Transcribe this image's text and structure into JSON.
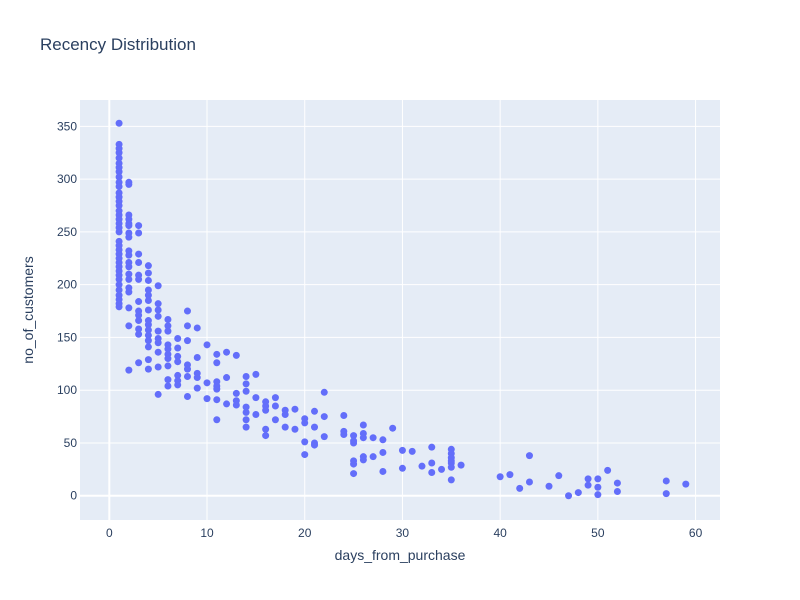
{
  "chart_data": {
    "type": "scatter",
    "title": "Recency Distribution",
    "xlabel": "days_from_purchase",
    "ylabel": "no_of_customers",
    "xlim": [
      -3,
      62.5
    ],
    "ylim": [
      -23,
      375
    ],
    "xticks": [
      0,
      10,
      20,
      30,
      40,
      50,
      60
    ],
    "yticks": [
      0,
      50,
      100,
      150,
      200,
      250,
      300,
      350
    ],
    "grid": true,
    "legend": "none",
    "colors": {
      "marker": "#636efa",
      "plot_bg": "#e5ecf6",
      "text": "#2a3f5f",
      "grid": "#ffffff"
    },
    "points": [
      [
        1,
        353
      ],
      [
        1,
        333
      ],
      [
        1,
        329
      ],
      [
        1,
        325
      ],
      [
        1,
        320
      ],
      [
        1,
        315
      ],
      [
        1,
        311
      ],
      [
        1,
        307
      ],
      [
        1,
        302
      ],
      [
        1,
        297
      ],
      [
        1,
        293
      ],
      [
        1,
        287
      ],
      [
        1,
        283
      ],
      [
        1,
        279
      ],
      [
        1,
        275
      ],
      [
        1,
        270
      ],
      [
        1,
        266
      ],
      [
        1,
        262
      ],
      [
        1,
        258
      ],
      [
        1,
        254
      ],
      [
        1,
        250
      ],
      [
        1,
        241
      ],
      [
        1,
        237
      ],
      [
        1,
        233
      ],
      [
        1,
        229
      ],
      [
        1,
        225
      ],
      [
        1,
        221
      ],
      [
        1,
        217
      ],
      [
        1,
        213
      ],
      [
        1,
        209
      ],
      [
        1,
        205
      ],
      [
        1,
        200
      ],
      [
        1,
        195
      ],
      [
        1,
        190
      ],
      [
        1,
        186
      ],
      [
        1,
        182
      ],
      [
        1,
        179
      ],
      [
        2,
        297
      ],
      [
        2,
        295
      ],
      [
        2,
        266
      ],
      [
        2,
        262
      ],
      [
        2,
        258
      ],
      [
        2,
        256
      ],
      [
        2,
        249
      ],
      [
        2,
        245
      ],
      [
        2,
        232
      ],
      [
        2,
        228
      ],
      [
        2,
        221
      ],
      [
        2,
        217
      ],
      [
        2,
        210
      ],
      [
        2,
        205
      ],
      [
        2,
        197
      ],
      [
        2,
        193
      ],
      [
        2,
        178
      ],
      [
        2,
        161
      ],
      [
        2,
        119
      ],
      [
        3,
        256
      ],
      [
        3,
        249
      ],
      [
        3,
        229
      ],
      [
        3,
        221
      ],
      [
        3,
        209
      ],
      [
        3,
        205
      ],
      [
        3,
        184
      ],
      [
        3,
        175
      ],
      [
        3,
        171
      ],
      [
        3,
        166
      ],
      [
        3,
        158
      ],
      [
        3,
        153
      ],
      [
        3,
        126
      ],
      [
        4,
        218
      ],
      [
        4,
        211
      ],
      [
        4,
        204
      ],
      [
        4,
        195
      ],
      [
        4,
        190
      ],
      [
        4,
        185
      ],
      [
        4,
        176
      ],
      [
        4,
        166
      ],
      [
        4,
        162
      ],
      [
        4,
        157
      ],
      [
        4,
        152
      ],
      [
        4,
        147
      ],
      [
        4,
        141
      ],
      [
        4,
        129
      ],
      [
        4,
        120
      ],
      [
        5,
        199
      ],
      [
        5,
        182
      ],
      [
        5,
        176
      ],
      [
        5,
        170
      ],
      [
        5,
        156
      ],
      [
        5,
        149
      ],
      [
        5,
        145
      ],
      [
        5,
        136
      ],
      [
        5,
        122
      ],
      [
        5,
        96
      ],
      [
        6,
        167
      ],
      [
        6,
        161
      ],
      [
        6,
        156
      ],
      [
        6,
        143
      ],
      [
        6,
        139
      ],
      [
        6,
        134
      ],
      [
        6,
        130
      ],
      [
        6,
        123
      ],
      [
        6,
        110
      ],
      [
        6,
        104
      ],
      [
        7,
        149
      ],
      [
        7,
        140
      ],
      [
        7,
        132
      ],
      [
        7,
        127
      ],
      [
        7,
        114
      ],
      [
        7,
        109
      ],
      [
        7,
        105
      ],
      [
        8,
        175
      ],
      [
        8,
        161
      ],
      [
        8,
        147
      ],
      [
        8,
        124
      ],
      [
        8,
        120
      ],
      [
        8,
        113
      ],
      [
        8,
        94
      ],
      [
        9,
        159
      ],
      [
        9,
        131
      ],
      [
        9,
        116
      ],
      [
        9,
        112
      ],
      [
        9,
        102
      ],
      [
        10,
        143
      ],
      [
        10,
        107
      ],
      [
        10,
        92
      ],
      [
        11,
        134
      ],
      [
        11,
        126
      ],
      [
        11,
        108
      ],
      [
        11,
        104
      ],
      [
        11,
        101
      ],
      [
        11,
        91
      ],
      [
        11,
        72
      ],
      [
        12,
        136
      ],
      [
        12,
        112
      ],
      [
        12,
        87
      ],
      [
        13,
        133
      ],
      [
        13,
        97
      ],
      [
        13,
        90
      ],
      [
        13,
        86
      ],
      [
        14,
        113
      ],
      [
        14,
        106
      ],
      [
        14,
        99
      ],
      [
        14,
        84
      ],
      [
        14,
        79
      ],
      [
        14,
        72
      ],
      [
        14,
        65
      ],
      [
        15,
        115
      ],
      [
        15,
        93
      ],
      [
        15,
        77
      ],
      [
        16,
        89
      ],
      [
        16,
        85
      ],
      [
        16,
        81
      ],
      [
        16,
        63
      ],
      [
        16,
        57
      ],
      [
        17,
        93
      ],
      [
        17,
        85
      ],
      [
        17,
        72
      ],
      [
        18,
        81
      ],
      [
        18,
        77
      ],
      [
        18,
        65
      ],
      [
        19,
        82
      ],
      [
        19,
        63
      ],
      [
        20,
        73
      ],
      [
        20,
        69
      ],
      [
        20,
        51
      ],
      [
        20,
        39
      ],
      [
        21,
        80
      ],
      [
        21,
        65
      ],
      [
        21,
        50
      ],
      [
        21,
        48
      ],
      [
        22,
        98
      ],
      [
        22,
        75
      ],
      [
        22,
        56
      ],
      [
        24,
        76
      ],
      [
        24,
        61
      ],
      [
        24,
        58
      ],
      [
        25,
        57
      ],
      [
        25,
        52
      ],
      [
        25,
        50
      ],
      [
        25,
        33
      ],
      [
        25,
        30
      ],
      [
        25,
        21
      ],
      [
        26,
        67
      ],
      [
        26,
        59
      ],
      [
        26,
        55
      ],
      [
        26,
        37
      ],
      [
        26,
        34
      ],
      [
        27,
        55
      ],
      [
        27,
        37
      ],
      [
        28,
        53
      ],
      [
        28,
        41
      ],
      [
        28,
        23
      ],
      [
        29,
        64
      ],
      [
        30,
        43
      ],
      [
        30,
        26
      ],
      [
        31,
        42
      ],
      [
        32,
        28
      ],
      [
        33,
        46
      ],
      [
        33,
        31
      ],
      [
        33,
        22
      ],
      [
        34,
        25
      ],
      [
        35,
        44
      ],
      [
        35,
        40
      ],
      [
        35,
        36
      ],
      [
        35,
        33
      ],
      [
        35,
        31
      ],
      [
        35,
        27
      ],
      [
        35,
        15
      ],
      [
        36,
        29
      ],
      [
        40,
        18
      ],
      [
        41,
        20
      ],
      [
        42,
        7
      ],
      [
        43,
        38
      ],
      [
        43,
        13
      ],
      [
        45,
        9
      ],
      [
        46,
        19
      ],
      [
        47,
        0
      ],
      [
        48,
        3
      ],
      [
        49,
        16
      ],
      [
        49,
        10
      ],
      [
        50,
        16
      ],
      [
        50,
        8
      ],
      [
        50,
        1
      ],
      [
        51,
        24
      ],
      [
        52,
        12
      ],
      [
        52,
        4
      ],
      [
        57,
        14
      ],
      [
        57,
        2
      ],
      [
        59,
        11
      ]
    ]
  }
}
